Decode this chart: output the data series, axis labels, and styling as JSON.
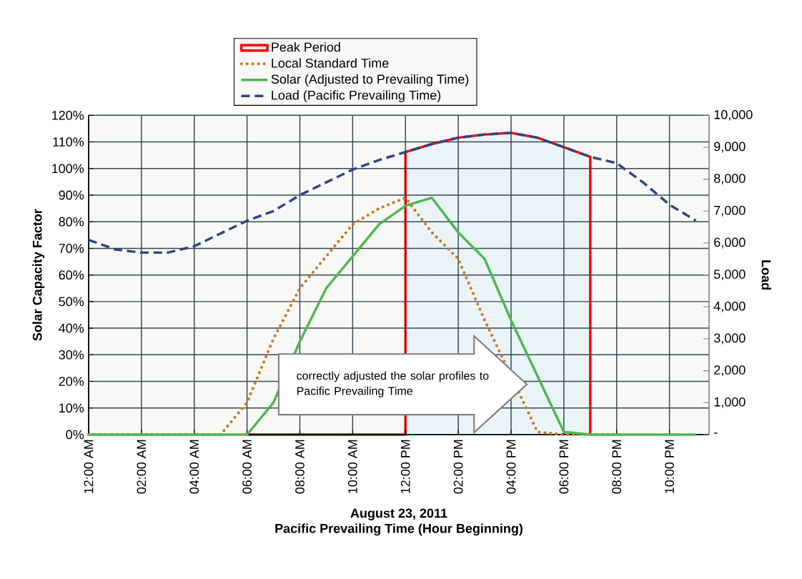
{
  "chart_data": {
    "type": "line",
    "x": [
      0,
      1,
      2,
      3,
      4,
      5,
      6,
      7,
      8,
      9,
      10,
      11,
      12,
      13,
      14,
      15,
      16,
      17,
      18,
      19,
      20,
      21,
      22,
      23
    ],
    "xlim": [
      0,
      23.5
    ],
    "xticks": [
      {
        "value": 0,
        "label": "12:00 AM"
      },
      {
        "value": 2,
        "label": "02:00 AM"
      },
      {
        "value": 4,
        "label": "04:00 AM"
      },
      {
        "value": 6,
        "label": "06:00 AM"
      },
      {
        "value": 8,
        "label": "08:00 AM"
      },
      {
        "value": 10,
        "label": "10:00 AM"
      },
      {
        "value": 12,
        "label": "12:00 PM"
      },
      {
        "value": 14,
        "label": "02:00 PM"
      },
      {
        "value": 16,
        "label": "04:00 PM"
      },
      {
        "value": 18,
        "label": "06:00 PM"
      },
      {
        "value": 20,
        "label": "08:00 PM"
      },
      {
        "value": 22,
        "label": "10:00 PM"
      }
    ],
    "ylim": [
      0,
      120
    ],
    "yticks": [
      {
        "value": 0,
        "label": "0%"
      },
      {
        "value": 10,
        "label": "10%"
      },
      {
        "value": 20,
        "label": "20%"
      },
      {
        "value": 30,
        "label": "30%"
      },
      {
        "value": 40,
        "label": "40%"
      },
      {
        "value": 50,
        "label": "50%"
      },
      {
        "value": 60,
        "label": "60%"
      },
      {
        "value": 70,
        "label": "70%"
      },
      {
        "value": 80,
        "label": "80%"
      },
      {
        "value": 90,
        "label": "90%"
      },
      {
        "value": 100,
        "label": "100%"
      },
      {
        "value": 110,
        "label": "110%"
      },
      {
        "value": 120,
        "label": "120%"
      }
    ],
    "y2lim": [
      0,
      10000
    ],
    "y2ticks": [
      {
        "value": 0,
        "label": "-"
      },
      {
        "value": 1000,
        "label": "1,000"
      },
      {
        "value": 2000,
        "label": "2,000"
      },
      {
        "value": 3000,
        "label": "3,000"
      },
      {
        "value": 4000,
        "label": "4,000"
      },
      {
        "value": 5000,
        "label": "5,000"
      },
      {
        "value": 6000,
        "label": "6,000"
      },
      {
        "value": 7000,
        "label": "7,000"
      },
      {
        "value": 8000,
        "label": "8,000"
      },
      {
        "value": 9000,
        "label": "9,000"
      },
      {
        "value": 10000,
        "label": "10,000"
      }
    ],
    "xlabel": "Pacific Prevailing Time (Hour Beginning)",
    "ylabel": "Solar Capacity Factor",
    "y2label": "Load",
    "annotations": [
      "August 23, 2011",
      "correctly adjusted the solar profiles to Pacific Prevailing Time"
    ],
    "legend": "top",
    "grid": true,
    "series": [
      {
        "name": "Peak Period",
        "type": "area",
        "axis": "y2",
        "color": "#ff0000",
        "x": [
          6,
          12,
          12,
          13,
          14,
          15,
          16,
          17,
          18,
          19,
          19
        ],
        "values": [
          0,
          0,
          8850,
          9100,
          9300,
          9400,
          9450,
          9300,
          9000,
          8700,
          0
        ]
      },
      {
        "name": "Local Standard Time",
        "color": "#d0781e",
        "line_style": "dotted",
        "values": [
          0,
          0,
          0,
          0,
          0,
          0,
          12,
          36,
          55,
          67,
          79,
          85,
          89,
          76,
          66,
          43,
          null,
          1,
          0,
          0,
          0,
          null,
          null,
          null
        ]
      },
      {
        "name": "Solar (Adjusted to Prevailing Time)",
        "color": "#4cb84c",
        "line_style": "solid",
        "values": [
          0,
          0,
          0,
          0,
          0,
          0,
          0,
          12,
          35,
          55,
          67,
          79,
          86,
          89,
          76,
          66,
          43,
          22,
          1,
          0,
          0,
          0,
          0,
          0
        ]
      },
      {
        "name": "Load (Pacific Prevailing Time)",
        "axis": "y2",
        "color": "#2e4686",
        "line_style": "dashed",
        "values": [
          6100,
          5800,
          5700,
          5700,
          5900,
          6300,
          6700,
          7000,
          7500,
          7900,
          8300,
          8600,
          8850,
          9100,
          9300,
          9400,
          9450,
          9300,
          9000,
          8700,
          8500,
          7900,
          7200,
          6700
        ]
      }
    ]
  }
}
